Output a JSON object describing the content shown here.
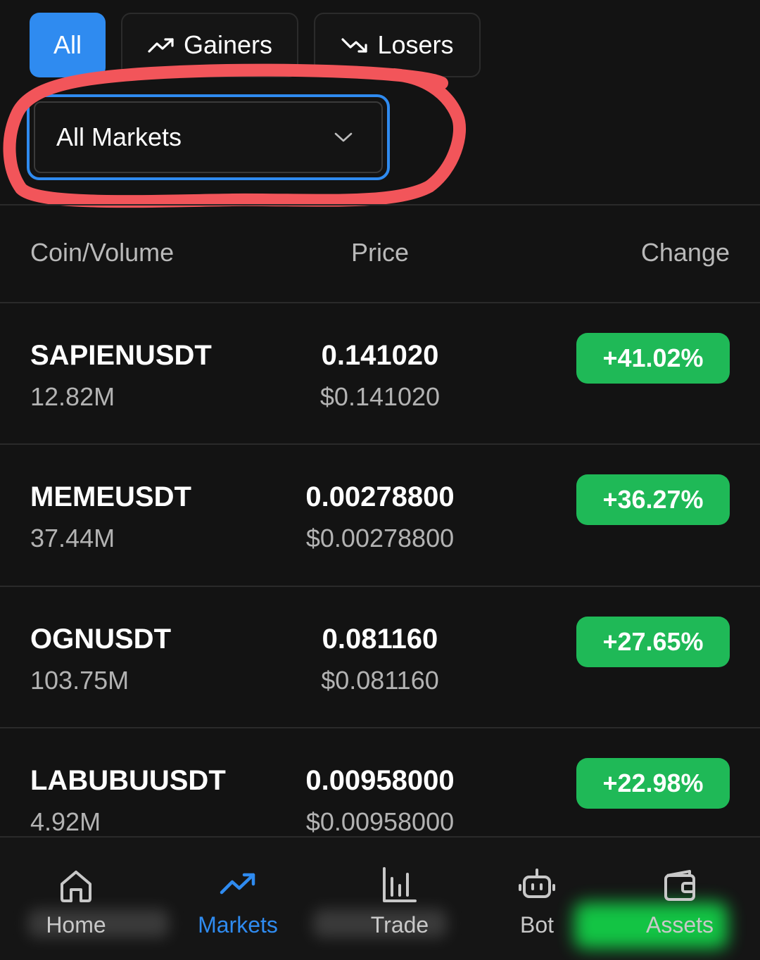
{
  "filters": {
    "all": "All",
    "gainers": "Gainers",
    "losers": "Losers"
  },
  "market_select": {
    "value": "All Markets"
  },
  "table": {
    "headers": {
      "coin": "Coin/Volume",
      "price": "Price",
      "change": "Change"
    },
    "rows": [
      {
        "coin": "SAPIENUSDT",
        "volume": "12.82M",
        "price": "0.141020",
        "price_usd": "$0.141020",
        "change": "+41.02%"
      },
      {
        "coin": "MEMEUSDT",
        "volume": "37.44M",
        "price": "0.00278800",
        "price_usd": "$0.00278800",
        "change": "+36.27%"
      },
      {
        "coin": "OGNUSDT",
        "volume": "103.75M",
        "price": "0.081160",
        "price_usd": "$0.081160",
        "change": "+27.65%"
      },
      {
        "coin": "LABUBUUSDT",
        "volume": "4.92M",
        "price": "0.00958000",
        "price_usd": "$0.00958000",
        "change": "+22.98%"
      }
    ]
  },
  "nav": {
    "items": [
      {
        "label": "Home",
        "icon": "home-icon"
      },
      {
        "label": "Markets",
        "icon": "trending-up-icon"
      },
      {
        "label": "Trade",
        "icon": "bar-chart-icon"
      },
      {
        "label": "Bot",
        "icon": "robot-icon"
      },
      {
        "label": "Assets",
        "icon": "wallet-icon"
      }
    ],
    "active": "Markets"
  },
  "colors": {
    "accent": "#2f8bf0",
    "positive": "#1fb957",
    "annotation": "#f2555a",
    "background": "#131313"
  }
}
